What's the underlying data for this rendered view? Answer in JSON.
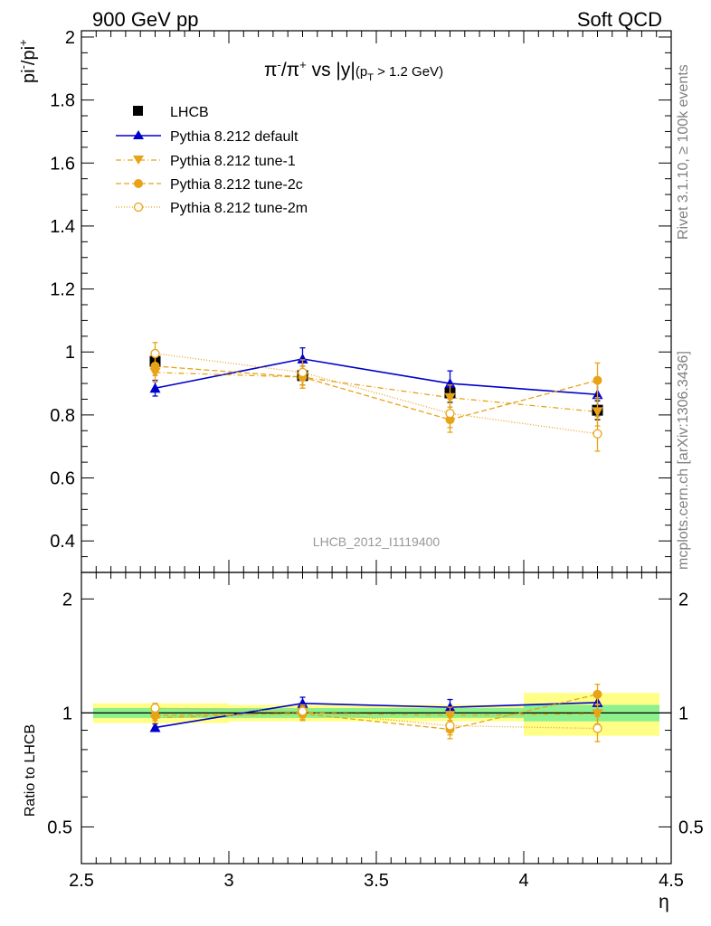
{
  "header": {
    "left_label": "900 GeV pp",
    "right_label": "Soft QCD"
  },
  "side_labels": {
    "rivet": "Rivet 3.1.10, ≥ 100k events",
    "mcplots": "mcplots.cern.ch [arXiv:1306.3436]"
  },
  "colors": {
    "data": "#000000",
    "default": "#0000cc",
    "tunes": "#e8a317",
    "band_inner": "#8cf08c",
    "band_outer": "#ffff88"
  },
  "chart_data": [
    {
      "type": "scatter",
      "title": "π⁻/π⁺ vs |y|",
      "title_cut": "(pT > 1.2 GeV)",
      "ylabel": "pi-/pi+",
      "watermark": "LHCB_2012_I1119400",
      "xlim": [
        2.5,
        4.5
      ],
      "ylim": [
        0.3,
        2.02
      ],
      "yticks": [
        0.4,
        0.6,
        0.8,
        1,
        1.2,
        1.4,
        1.6,
        1.8,
        2
      ],
      "ytick_labels": [
        "0.4",
        "0.6",
        "0.8",
        "1",
        "1.2",
        "1.4",
        "1.6",
        "1.8",
        "2"
      ],
      "x": [
        2.75,
        3.25,
        3.75,
        4.25
      ],
      "series": [
        {
          "name": "LHCB",
          "values": [
            0.97,
            0.925,
            0.87,
            0.815
          ],
          "errors": [
            0.03,
            0.03,
            0.03,
            0.03
          ]
        },
        {
          "name": "Pythia 8.212 default",
          "values": [
            0.885,
            0.978,
            0.9,
            0.865
          ],
          "errors": [
            0.025,
            0.035,
            0.04,
            0.045
          ]
        },
        {
          "name": "Pythia 8.212 tune-1",
          "values": [
            0.935,
            0.92,
            0.855,
            0.81
          ],
          "errors": [
            0.03,
            0.035,
            0.04,
            0.045
          ]
        },
        {
          "name": "Pythia 8.212 tune-2c",
          "values": [
            0.955,
            0.92,
            0.785,
            0.91
          ],
          "errors": [
            0.03,
            0.035,
            0.04,
            0.055
          ]
        },
        {
          "name": "Pythia 8.212 tune-2m",
          "values": [
            0.995,
            0.935,
            0.805,
            0.74
          ],
          "errors": [
            0.035,
            0.04,
            0.045,
            0.055
          ]
        }
      ]
    },
    {
      "type": "scatter",
      "ylabel": "Ratio to LHCB",
      "xlabel": "η",
      "xlim": [
        2.5,
        4.5
      ],
      "ylim": [
        0.4,
        2.35
      ],
      "yscale": "log",
      "xticks": [
        2.5,
        3,
        3.5,
        4,
        4.5
      ],
      "xtick_labels": [
        "2.5",
        "3",
        "3.5",
        "4",
        "4.5"
      ],
      "yticks": [
        0.5,
        1,
        2
      ],
      "ytick_labels": [
        "0.5",
        "1",
        "2"
      ],
      "x": [
        2.75,
        3.25,
        3.75,
        4.25
      ],
      "data_band": [
        {
          "x": [
            2.5,
            3.0
          ],
          "inner": 0.03,
          "outer": 0.06
        },
        {
          "x": [
            3.0,
            3.5
          ],
          "inner": 0.03,
          "outer": 0.05
        },
        {
          "x": [
            3.5,
            4.0
          ],
          "inner": 0.03,
          "outer": 0.05
        },
        {
          "x": [
            4.0,
            4.5
          ],
          "inner": 0.05,
          "outer": 0.13
        }
      ],
      "series": [
        {
          "name": "Pythia 8.212 default",
          "values": [
            0.915,
            1.06,
            1.035,
            1.065
          ],
          "errors": [
            0.02,
            0.04,
            0.05,
            0.05
          ]
        },
        {
          "name": "Pythia 8.212 tune-1",
          "values": [
            0.97,
            1.0,
            0.985,
            0.995
          ],
          "errors": [
            0.03,
            0.04,
            0.05,
            0.06
          ]
        },
        {
          "name": "Pythia 8.212 tune-2c",
          "values": [
            0.985,
            0.995,
            0.905,
            1.12
          ],
          "errors": [
            0.03,
            0.04,
            0.05,
            0.07
          ]
        },
        {
          "name": "Pythia 8.212 tune-2m",
          "values": [
            1.03,
            1.01,
            0.925,
            0.91
          ],
          "errors": [
            0.03,
            0.04,
            0.05,
            0.07
          ]
        }
      ]
    }
  ]
}
